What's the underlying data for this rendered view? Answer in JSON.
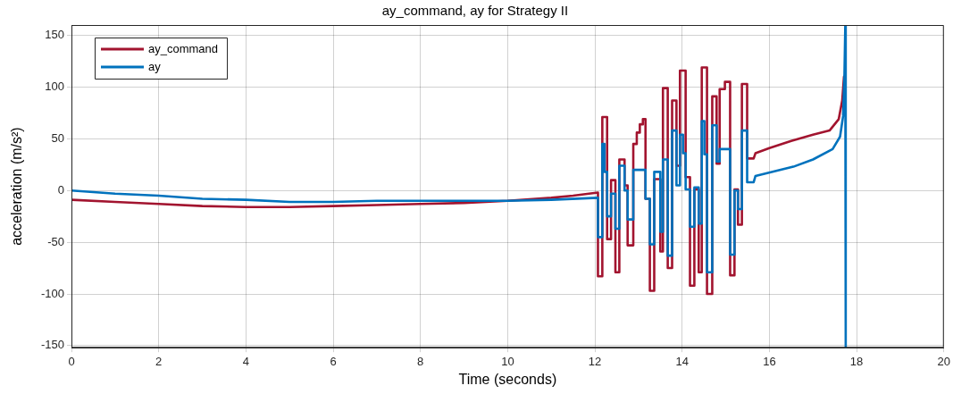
{
  "chart_data": {
    "type": "line",
    "title": "ay_command, ay for Strategy II",
    "xlabel": "Time (seconds)",
    "ylabel": "acceleration (m/s²)",
    "xlim": [
      0,
      20
    ],
    "xticks": [
      0,
      2,
      4,
      6,
      8,
      10,
      12,
      14,
      16,
      18,
      20
    ],
    "ylim": [
      -152,
      160
    ],
    "yticks": [
      -150,
      -100,
      -50,
      0,
      50,
      100,
      150
    ],
    "grid": true,
    "legend": "top left",
    "marker": "none",
    "line_style": "solid",
    "series": [
      {
        "name": "ay_command",
        "color": "#a2142f",
        "x": [
          0,
          1,
          2,
          3,
          4,
          5,
          6,
          7,
          8,
          9,
          10,
          11,
          11.5,
          12.07,
          12.07,
          12.17,
          12.17,
          12.28,
          12.28,
          12.37,
          12.37,
          12.47,
          12.47,
          12.56,
          12.56,
          12.68,
          12.68,
          12.75,
          12.75,
          12.88,
          12.88,
          12.96,
          12.96,
          13.03,
          13.03,
          13.1,
          13.1,
          13.16,
          13.16,
          13.26,
          13.26,
          13.36,
          13.36,
          13.5,
          13.5,
          13.56,
          13.56,
          13.67,
          13.67,
          13.77,
          13.77,
          13.87,
          13.87,
          13.95,
          13.95,
          14.08,
          14.08,
          14.18,
          14.18,
          14.28,
          14.28,
          14.38,
          14.38,
          14.45,
          14.45,
          14.57,
          14.57,
          14.69,
          14.69,
          14.79,
          14.79,
          14.86,
          14.86,
          14.98,
          14.98,
          15.1,
          15.1,
          15.2,
          15.2,
          15.28,
          15.28,
          15.37,
          15.37,
          15.49,
          15.49,
          15.64,
          15.68,
          16,
          16.5,
          17,
          17.38,
          17.59,
          17.67,
          17.71
        ],
        "values": [
          -9,
          -11,
          -13,
          -15,
          -16,
          -16,
          -15,
          -14,
          -13,
          -12,
          -10,
          -7,
          -5,
          -2,
          -83,
          -83,
          71,
          71,
          -47,
          -47,
          10,
          10,
          -79,
          -79,
          30,
          30,
          5,
          5,
          -53,
          -53,
          45,
          45,
          56,
          56,
          64,
          64,
          69,
          69,
          -8,
          -8,
          -97,
          -97,
          11,
          11,
          -59,
          -59,
          99,
          99,
          -75,
          -75,
          87,
          87,
          24,
          24,
          116,
          116,
          13,
          13,
          -92,
          -92,
          1,
          1,
          -79,
          -79,
          119,
          119,
          -100,
          -100,
          91,
          91,
          26,
          26,
          98,
          98,
          105,
          105,
          -82,
          -82,
          1,
          1,
          -33,
          -33,
          103,
          103,
          31,
          31,
          36,
          41,
          48,
          54,
          58,
          69,
          87,
          110
        ]
      },
      {
        "name": "ay",
        "color": "#0072bd",
        "x": [
          0,
          1,
          2,
          3,
          4,
          5,
          6,
          7,
          8,
          9,
          10,
          11,
          12.07,
          12.07,
          12.17,
          12.17,
          12.22,
          12.22,
          12.28,
          12.28,
          12.37,
          12.37,
          12.47,
          12.47,
          12.56,
          12.56,
          12.68,
          12.68,
          12.75,
          12.75,
          12.88,
          12.88,
          13.16,
          13.16,
          13.26,
          13.26,
          13.36,
          13.36,
          13.5,
          13.5,
          13.56,
          13.56,
          13.67,
          13.67,
          13.77,
          13.77,
          13.87,
          13.87,
          13.95,
          13.95,
          14.02,
          14.02,
          14.08,
          14.08,
          14.18,
          14.18,
          14.28,
          14.28,
          14.38,
          14.38,
          14.45,
          14.45,
          14.51,
          14.51,
          14.57,
          14.57,
          14.69,
          14.69,
          14.79,
          14.79,
          14.86,
          14.86,
          15.1,
          15.1,
          15.2,
          15.2,
          15.28,
          15.28,
          15.37,
          15.37,
          15.49,
          15.49,
          15.64,
          15.68,
          16.55,
          17,
          17.45,
          17.62,
          17.69,
          17.72,
          17.74,
          17.75
        ],
        "values": [
          0,
          -3,
          -5,
          -8,
          -9,
          -11,
          -11,
          -10,
          -10,
          -10,
          -10,
          -9,
          -7,
          -45,
          -45,
          45,
          45,
          18,
          18,
          -25,
          -25,
          -3,
          -3,
          -37,
          -37,
          24,
          24,
          0,
          0,
          -28,
          -28,
          20,
          20,
          -8,
          -8,
          -52,
          -52,
          18,
          18,
          -40,
          -40,
          30,
          30,
          -63,
          -63,
          58,
          58,
          5,
          5,
          54,
          54,
          36,
          36,
          1,
          1,
          -35,
          -35,
          3,
          3,
          -32,
          -32,
          67,
          67,
          35,
          35,
          -79,
          -79,
          63,
          63,
          28,
          28,
          40,
          40,
          -62,
          -62,
          0,
          0,
          -18,
          -18,
          58,
          58,
          8,
          8,
          14,
          23,
          30,
          40,
          52,
          72,
          110,
          160,
          -152
        ]
      }
    ]
  }
}
